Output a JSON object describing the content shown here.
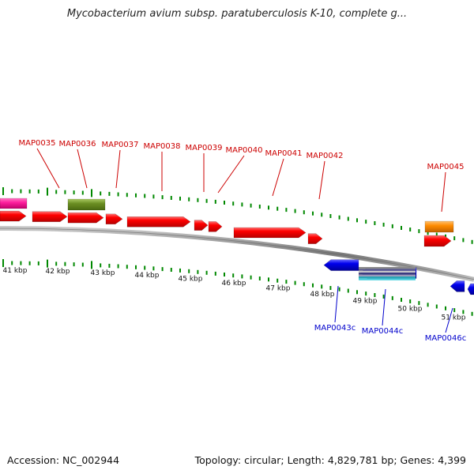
{
  "title": "Mycobacterium avium subsp. paratuberculosis K-10, complete g...",
  "footer": {
    "accession": "Accession: NC_002944",
    "stats": "Topology: circular; Length: 4,829,781 bp; Genes: 4,399"
  },
  "colors": {
    "forward_label": "#cc0000",
    "reverse_label": "#0000cc",
    "tick": "#008800",
    "backbone": "#777777",
    "cds": "#ff0000",
    "cds_reverse": "#0000ee",
    "pink": "#ff1f9e",
    "olive": "#6b8e23",
    "orange": "#ff8c00"
  },
  "ruler": {
    "unit": "kbp",
    "labels": [
      "41 kbp",
      "42 kbp",
      "43 kbp",
      "44 kbp",
      "45 kbp",
      "46 kbp",
      "47 kbp",
      "48 kbp",
      "49 kbp",
      "50 kbp",
      "51 kbp"
    ]
  },
  "forward_genes": [
    "MAP0035",
    "MAP0036",
    "MAP0037",
    "MAP0038",
    "MAP0039",
    "MAP0040",
    "MAP0041",
    "MAP0042",
    "MAP0045"
  ],
  "reverse_genes": [
    "MAP0043c",
    "MAP0044c",
    "MAP0046c"
  ]
}
